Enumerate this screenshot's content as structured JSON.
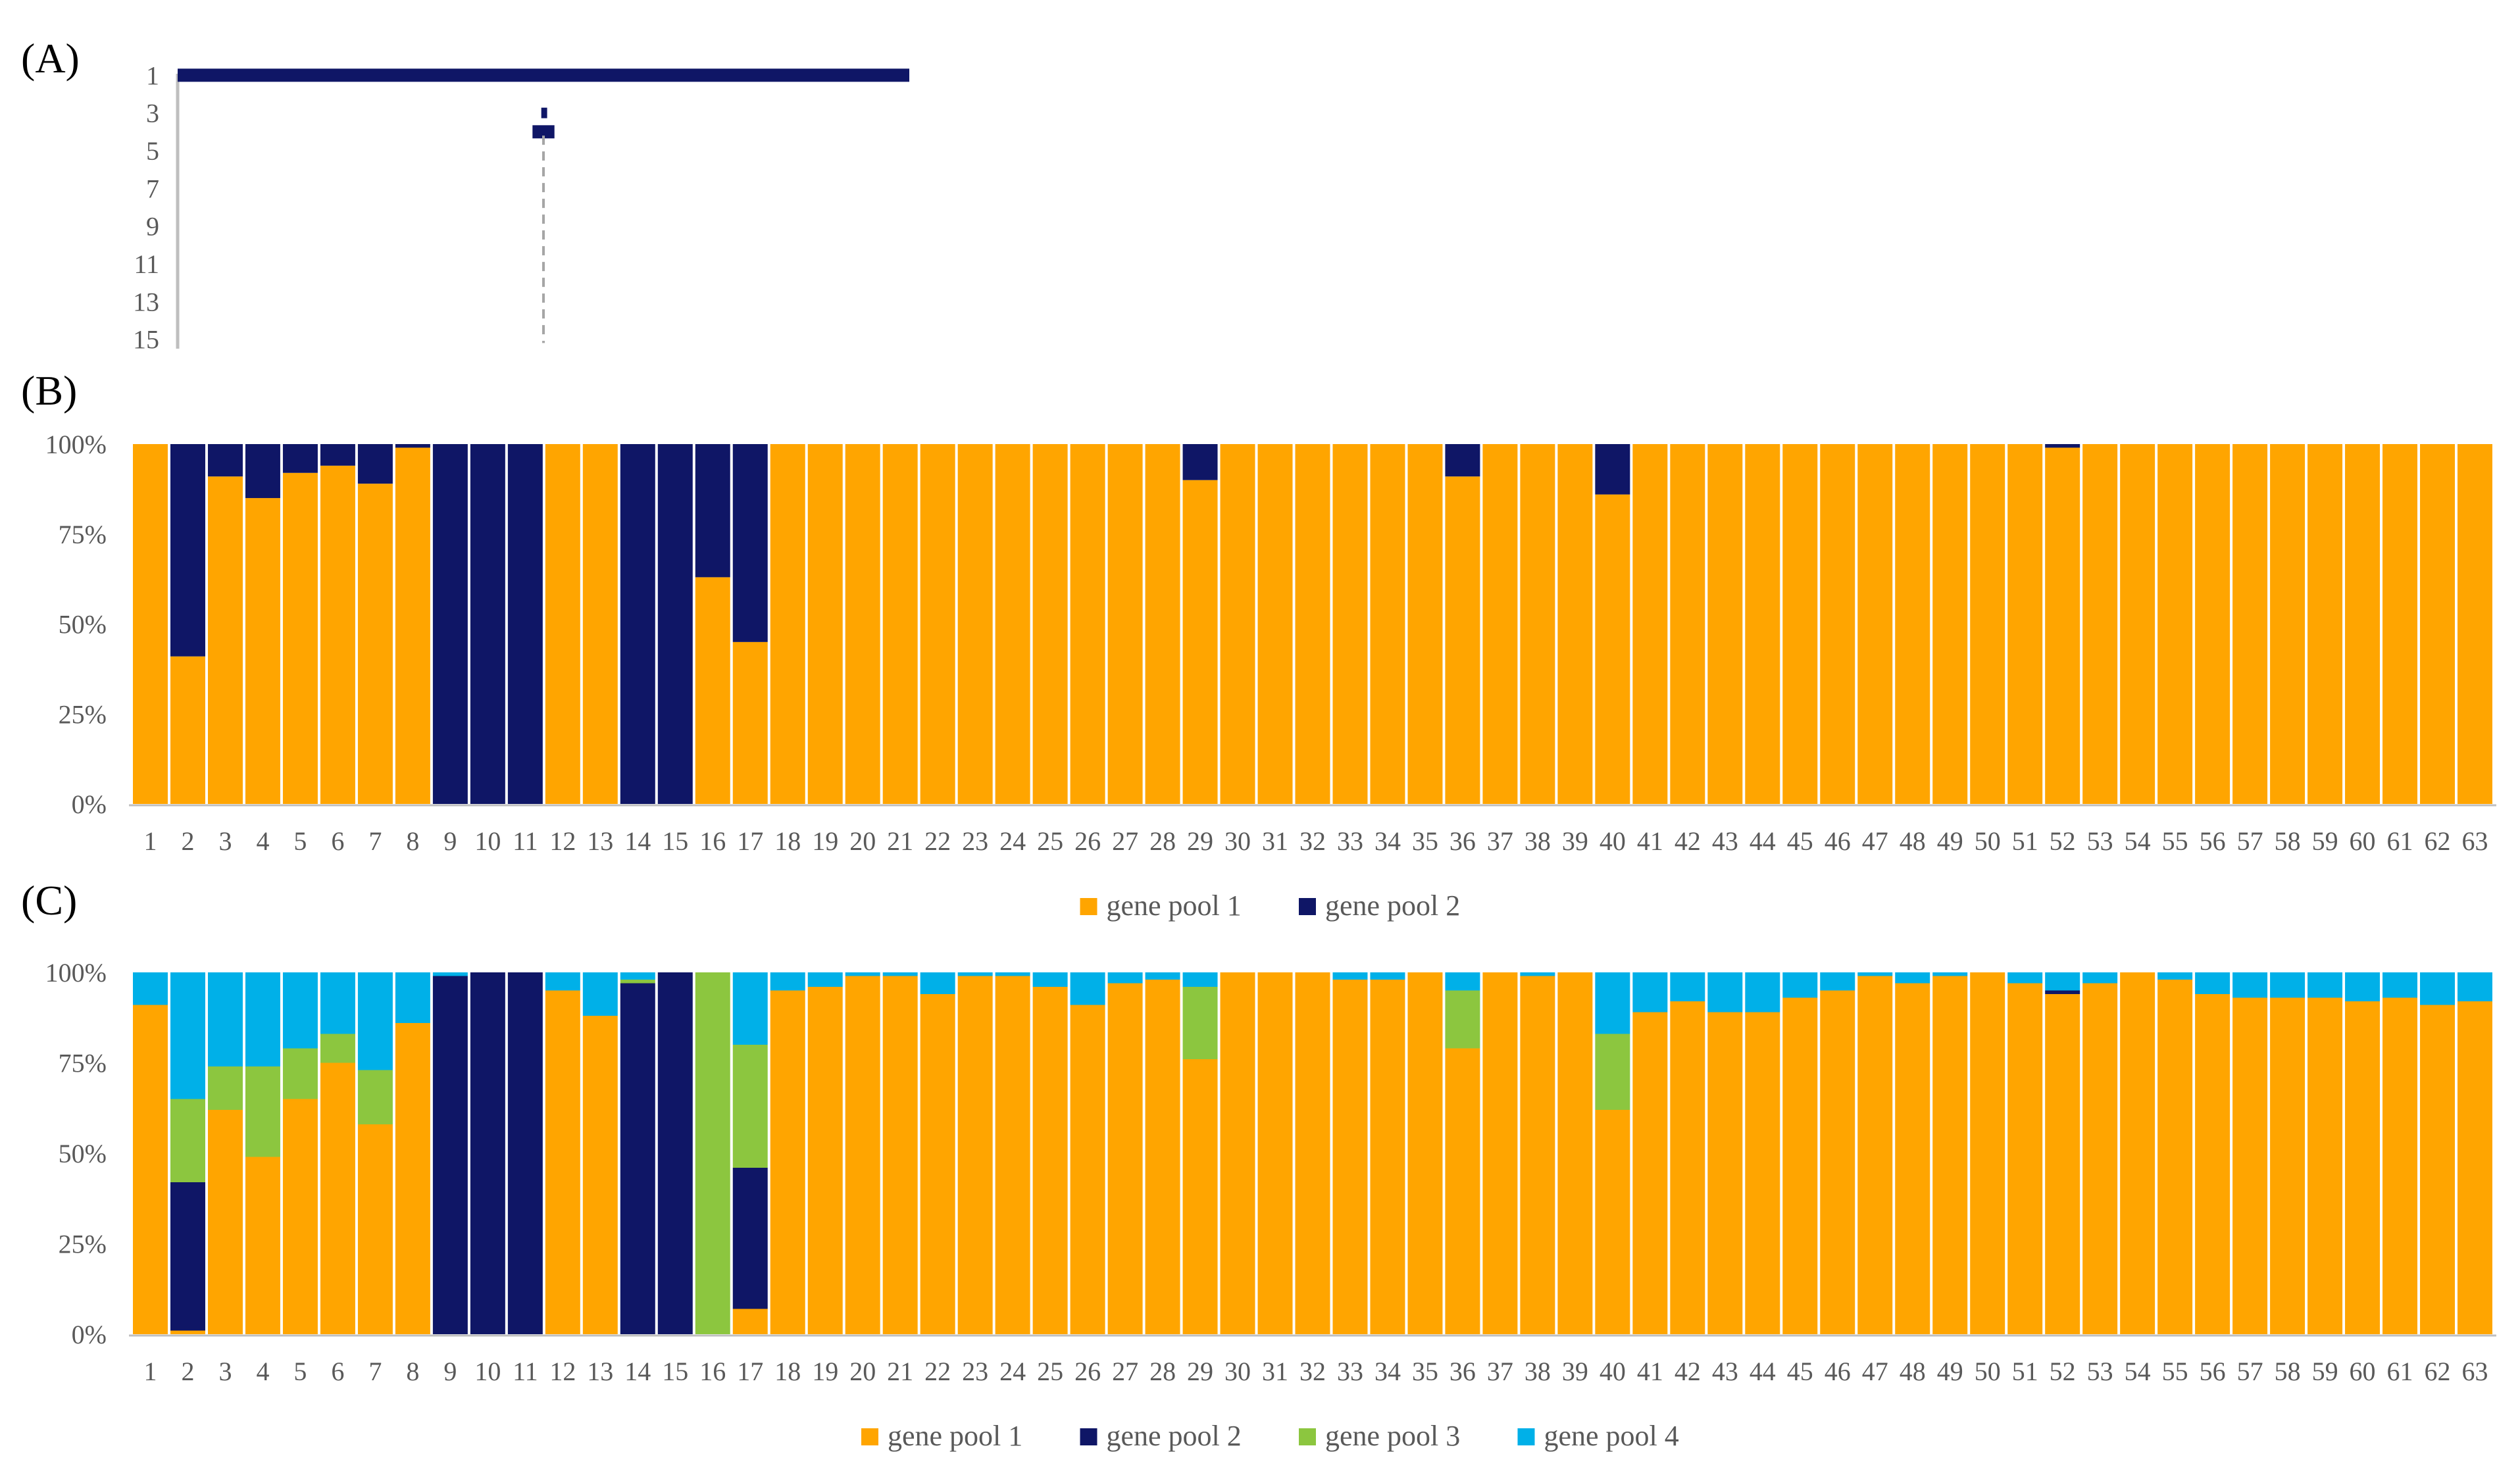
{
  "colors": {
    "gene_pool_1": "#FFA500",
    "gene_pool_2": "#0F1666",
    "gene_pool_3": "#8CC63F",
    "gene_pool_4": "#00B0E8",
    "axis": "#BFBFBF",
    "text": "#595959"
  },
  "chart_data": [
    {
      "panel": "(A)",
      "type": "dendrogram",
      "y_tick_labels": [
        "1",
        "3",
        "5",
        "7",
        "9",
        "11",
        "13",
        "15"
      ],
      "y_values": [
        1,
        3,
        5,
        7,
        9,
        11,
        13,
        15
      ],
      "ylim": [
        0.5,
        15.5
      ],
      "segments": [
        {
          "level": 1.0,
          "start": 0,
          "end": 1.0,
          "color": "#0F1666"
        },
        {
          "level": 3.0,
          "start": 0.497,
          "end": 0.505,
          "color": "#0F1666"
        },
        {
          "level": 4.0,
          "start": 0.485,
          "end": 0.515,
          "color": "#0F1666"
        }
      ],
      "cutoff_line": {
        "position": 0.5,
        "from_level": 4.2,
        "to_level": 15.2,
        "style": "dashed"
      }
    },
    {
      "panel": "(B)",
      "type": "bar",
      "stacked": true,
      "ylim": [
        0,
        100
      ],
      "ytick_labels": [
        "0%",
        "25%",
        "50%",
        "75%",
        "100%"
      ],
      "yticks": [
        0,
        25,
        50,
        75,
        100
      ],
      "categories": [
        "1",
        "2",
        "3",
        "4",
        "5",
        "6",
        "7",
        "8",
        "9",
        "10",
        "11",
        "12",
        "13",
        "14",
        "15",
        "16",
        "17",
        "18",
        "19",
        "20",
        "21",
        "22",
        "23",
        "24",
        "25",
        "26",
        "27",
        "28",
        "29",
        "30",
        "31",
        "32",
        "33",
        "34",
        "35",
        "36",
        "37",
        "38",
        "39",
        "40",
        "41",
        "42",
        "43",
        "44",
        "45",
        "46",
        "47",
        "48",
        "49",
        "50",
        "51",
        "52",
        "53",
        "54",
        "55",
        "56",
        "57",
        "58",
        "59",
        "60",
        "61",
        "62",
        "63"
      ],
      "legend": [
        "gene pool 1",
        "gene pool 2"
      ],
      "series": [
        {
          "name": "gene pool 1",
          "values": [
            100,
            41,
            91,
            85,
            92,
            94,
            89,
            99,
            0,
            0,
            0,
            100,
            100,
            0,
            0,
            63,
            45,
            100,
            100,
            100,
            100,
            100,
            100,
            100,
            100,
            100,
            100,
            100,
            90,
            100,
            100,
            100,
            100,
            100,
            100,
            91,
            100,
            100,
            100,
            86,
            100,
            100,
            100,
            100,
            100,
            100,
            100,
            100,
            100,
            100,
            100,
            99,
            100,
            100,
            100,
            100,
            100,
            100,
            100,
            100,
            100,
            100,
            100
          ]
        },
        {
          "name": "gene pool 2",
          "values": [
            0,
            59,
            9,
            15,
            8,
            6,
            11,
            1,
            100,
            100,
            100,
            0,
            0,
            100,
            100,
            37,
            55,
            0,
            0,
            0,
            0,
            0,
            0,
            0,
            0,
            0,
            0,
            0,
            10,
            0,
            0,
            0,
            0,
            0,
            0,
            9,
            0,
            0,
            0,
            14,
            0,
            0,
            0,
            0,
            0,
            0,
            0,
            0,
            0,
            0,
            0,
            1,
            0,
            0,
            0,
            0,
            0,
            0,
            0,
            0,
            0,
            0,
            0
          ]
        }
      ]
    },
    {
      "panel": "(C)",
      "type": "bar",
      "stacked": true,
      "ylim": [
        0,
        100
      ],
      "ytick_labels": [
        "0%",
        "25%",
        "50%",
        "75%",
        "100%"
      ],
      "yticks": [
        0,
        25,
        50,
        75,
        100
      ],
      "categories": [
        "1",
        "2",
        "3",
        "4",
        "5",
        "6",
        "7",
        "8",
        "9",
        "10",
        "11",
        "12",
        "13",
        "14",
        "15",
        "16",
        "17",
        "18",
        "19",
        "20",
        "21",
        "22",
        "23",
        "24",
        "25",
        "26",
        "27",
        "28",
        "29",
        "30",
        "31",
        "32",
        "33",
        "34",
        "35",
        "36",
        "37",
        "38",
        "39",
        "40",
        "41",
        "42",
        "43",
        "44",
        "45",
        "46",
        "47",
        "48",
        "49",
        "50",
        "51",
        "52",
        "53",
        "54",
        "55",
        "56",
        "57",
        "58",
        "59",
        "60",
        "61",
        "62",
        "63"
      ],
      "legend": [
        "gene pool 1",
        "gene pool 2",
        "gene pool 3",
        "gene pool 4"
      ],
      "series": [
        {
          "name": "gene pool 1",
          "values": [
            91,
            1,
            62,
            49,
            65,
            75,
            58,
            86,
            0,
            0,
            0,
            95,
            88,
            0,
            0,
            0,
            7,
            95,
            96,
            99,
            99,
            94,
            99,
            99,
            96,
            91,
            97,
            98,
            76,
            100,
            100,
            100,
            98,
            98,
            100,
            79,
            100,
            99,
            100,
            62,
            89,
            92,
            89,
            89,
            93,
            95,
            99,
            97,
            99,
            100,
            97,
            94,
            97,
            100,
            98,
            94,
            93,
            93,
            93,
            92,
            93,
            91,
            92
          ]
        },
        {
          "name": "gene pool 2",
          "values": [
            0,
            41,
            0,
            0,
            0,
            0,
            0,
            0,
            99,
            100,
            100,
            0,
            0,
            97,
            100,
            0,
            39,
            0,
            0,
            0,
            0,
            0,
            0,
            0,
            0,
            0,
            0,
            0,
            0,
            0,
            0,
            0,
            0,
            0,
            0,
            0,
            0,
            0,
            0,
            0,
            0,
            0,
            0,
            0,
            0,
            0,
            0,
            0,
            0,
            0,
            0,
            1,
            0,
            0,
            0,
            0,
            0,
            0,
            0,
            0,
            0,
            0,
            0
          ]
        },
        {
          "name": "gene pool 3",
          "values": [
            0,
            23,
            12,
            25,
            14,
            8,
            15,
            0,
            0,
            0,
            0,
            0,
            0,
            1,
            0,
            100,
            34,
            0,
            0,
            0,
            0,
            0,
            0,
            0,
            0,
            0,
            0,
            0,
            20,
            0,
            0,
            0,
            0,
            0,
            0,
            16,
            0,
            0,
            0,
            21,
            0,
            0,
            0,
            0,
            0,
            0,
            0,
            0,
            0,
            0,
            0,
            0,
            0,
            0,
            0,
            0,
            0,
            0,
            0,
            0,
            0,
            0,
            0
          ]
        },
        {
          "name": "gene pool 4",
          "values": [
            9,
            35,
            26,
            26,
            21,
            17,
            27,
            14,
            1,
            0,
            0,
            5,
            12,
            2,
            0,
            0,
            20,
            5,
            4,
            1,
            1,
            6,
            1,
            1,
            4,
            9,
            3,
            2,
            4,
            0,
            0,
            0,
            2,
            2,
            0,
            5,
            0,
            1,
            0,
            17,
            11,
            8,
            11,
            11,
            7,
            5,
            1,
            3,
            1,
            0,
            3,
            5,
            3,
            0,
            2,
            6,
            7,
            7,
            7,
            8,
            7,
            9,
            8
          ]
        }
      ]
    }
  ]
}
